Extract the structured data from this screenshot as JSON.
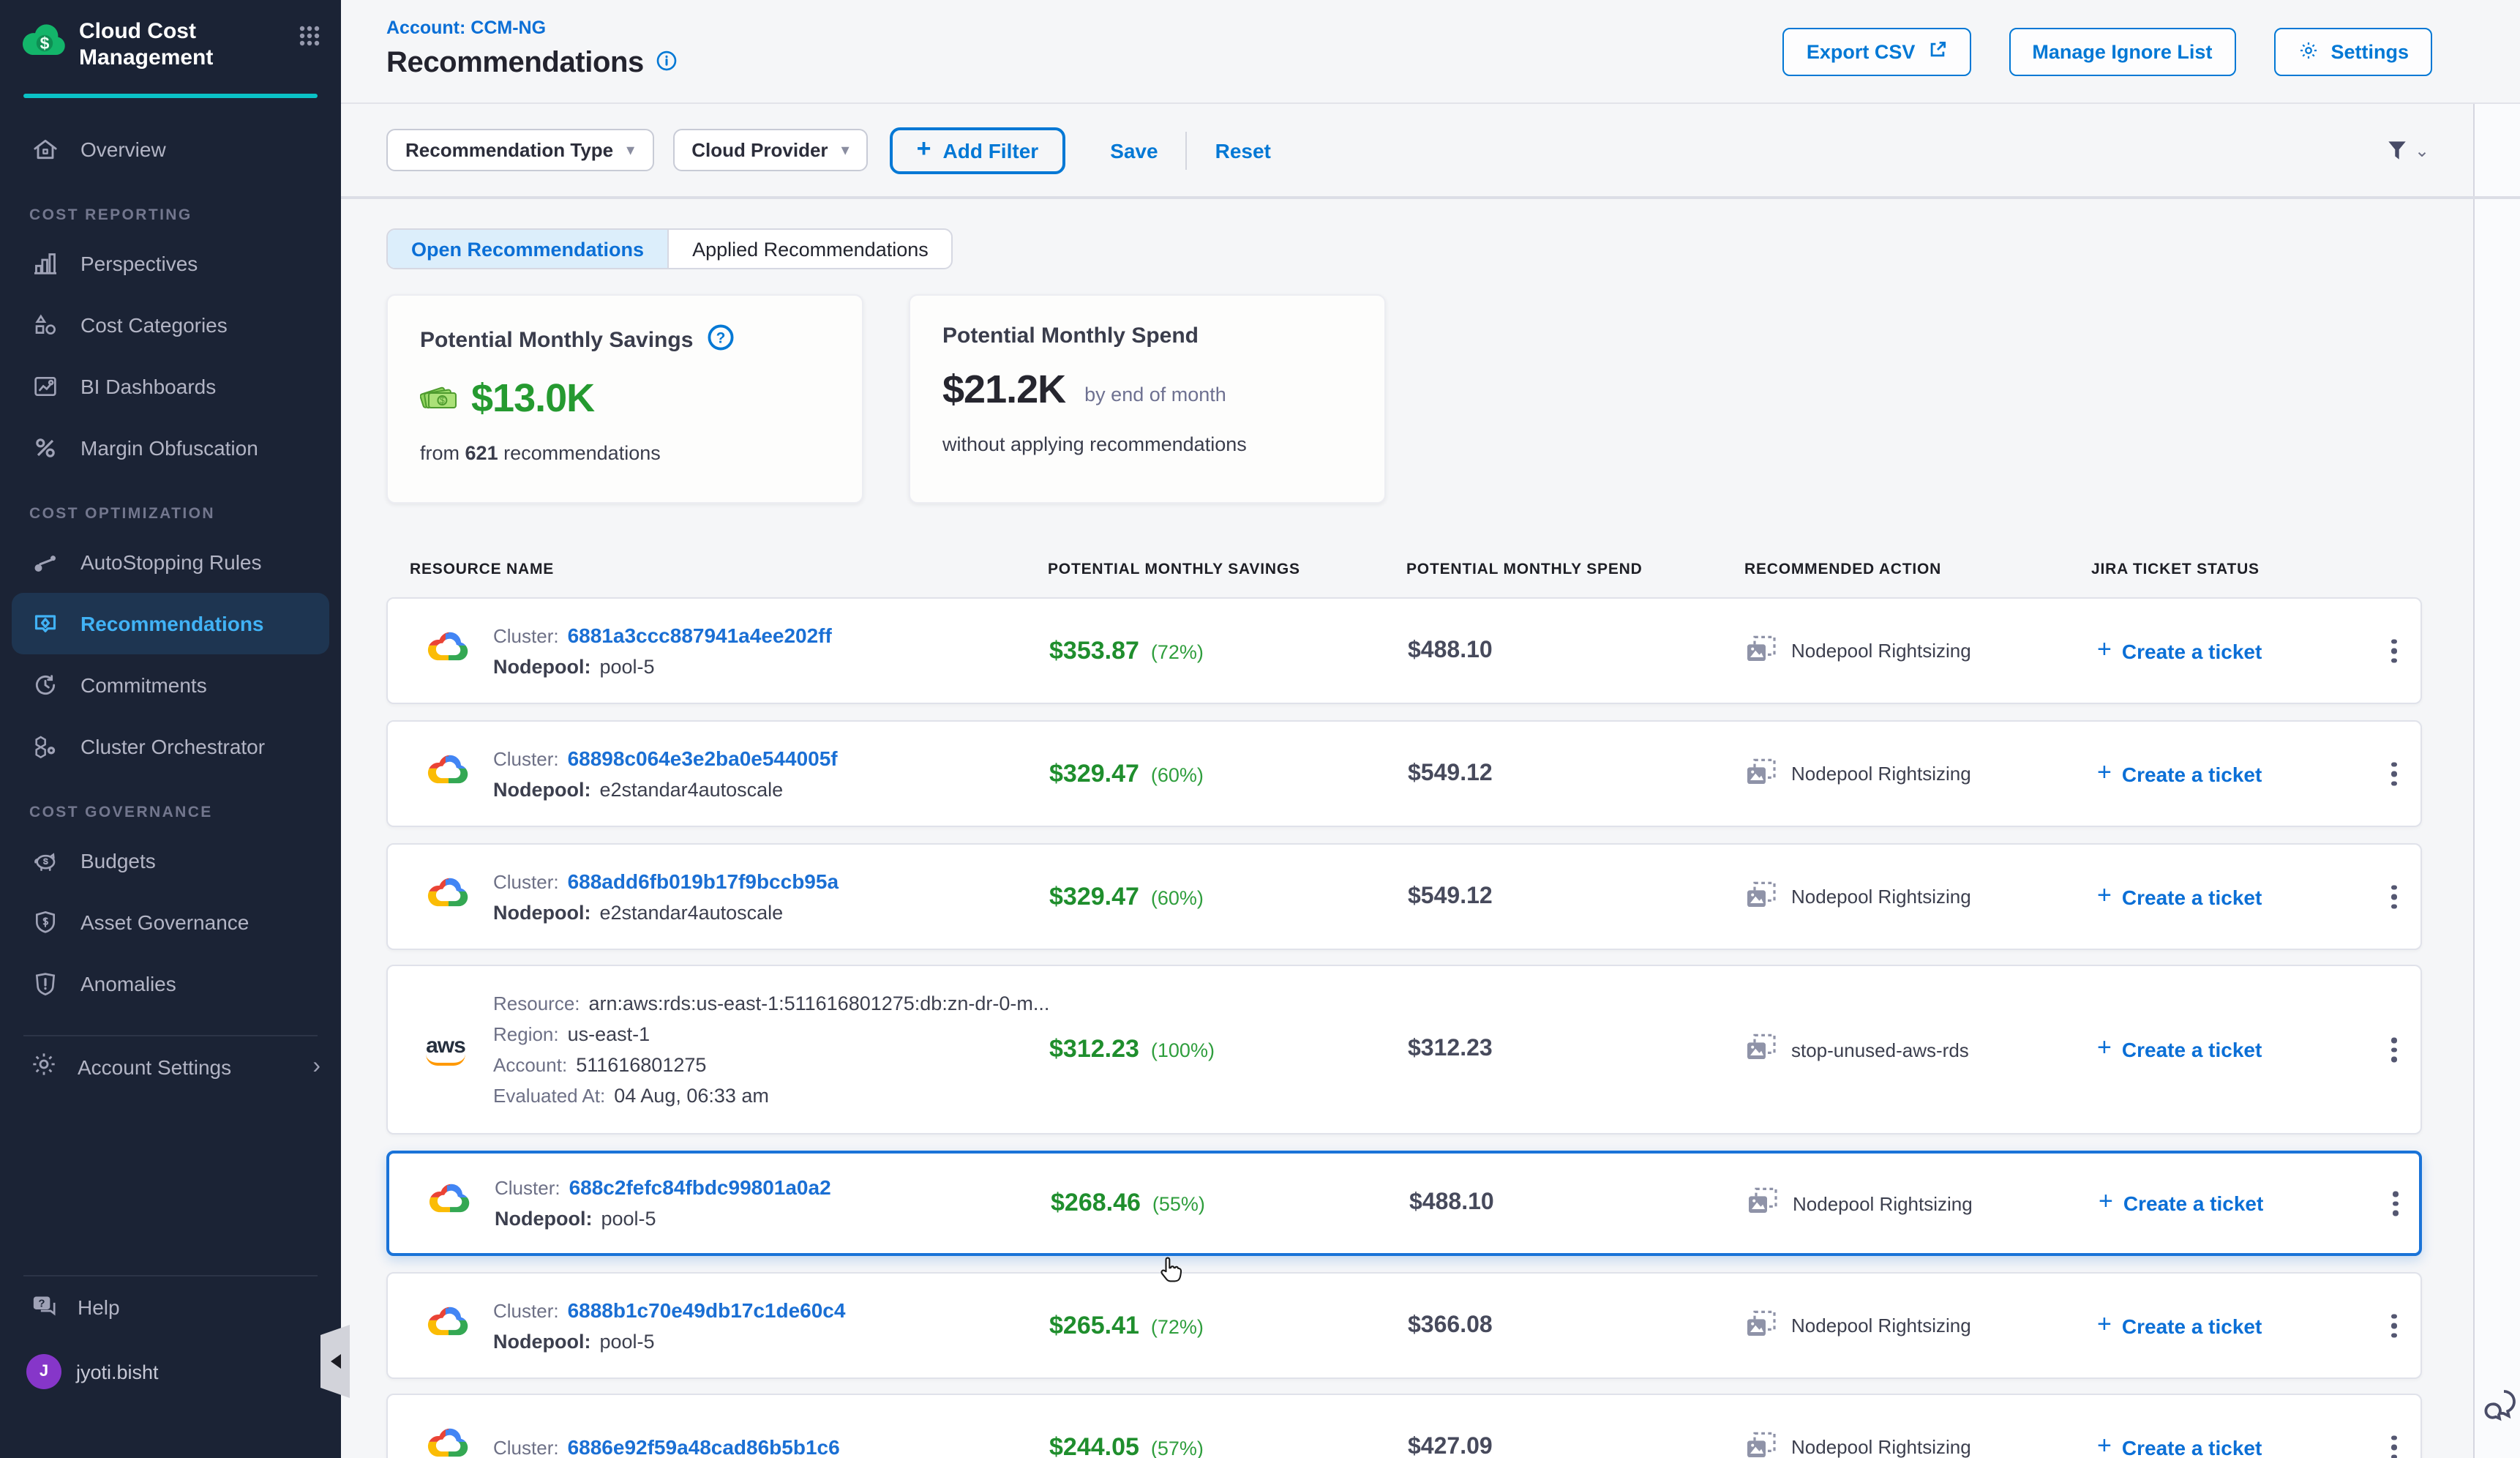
{
  "colors": {
    "accent": "#0278d5",
    "green": "#1f8e2d",
    "sidebar_bg": "#1b2335",
    "teal": "#0ac2c6",
    "active_nav": "#41b2f5"
  },
  "sidebar": {
    "app_title": "Cloud Cost Management",
    "sections": [
      {
        "header": "",
        "items": [
          {
            "label": "Overview",
            "icon": "home-icon"
          }
        ]
      },
      {
        "header": "COST REPORTING",
        "items": [
          {
            "label": "Perspectives",
            "icon": "bar-chart-icon"
          },
          {
            "label": "Cost Categories",
            "icon": "shapes-icon"
          },
          {
            "label": "BI Dashboards",
            "icon": "dashboard-icon"
          },
          {
            "label": "Margin Obfuscation",
            "icon": "percent-icon"
          }
        ]
      },
      {
        "header": "COST OPTIMIZATION",
        "items": [
          {
            "label": "AutoStopping Rules",
            "icon": "autostopping-icon"
          },
          {
            "label": "Recommendations",
            "icon": "recommendations-icon",
            "active": true
          },
          {
            "label": "Commitments",
            "icon": "clock-icon"
          },
          {
            "label": "Cluster Orchestrator",
            "icon": "hexagon-icon"
          }
        ]
      },
      {
        "header": "COST GOVERNANCE",
        "items": [
          {
            "label": "Budgets",
            "icon": "piggy-bank-icon"
          },
          {
            "label": "Asset Governance",
            "icon": "shield-dollar-icon"
          },
          {
            "label": "Anomalies",
            "icon": "shield-alert-icon"
          }
        ]
      }
    ],
    "account_settings": "Account Settings",
    "help": "Help",
    "user": {
      "initial": "J",
      "name": "jyoti.bisht"
    }
  },
  "header": {
    "account": "Account: CCM-NG",
    "title": "Recommendations",
    "buttons": {
      "export": "Export CSV",
      "manage": "Manage Ignore List",
      "settings": "Settings"
    }
  },
  "filters": {
    "type": "Recommendation Type",
    "provider": "Cloud Provider",
    "add": "Add Filter",
    "save": "Save",
    "reset": "Reset"
  },
  "tabs": {
    "open": "Open Recommendations",
    "applied": "Applied Recommendations"
  },
  "cards": {
    "savings": {
      "title": "Potential Monthly Savings",
      "amount": "$13.0K",
      "from": "from",
      "count": "621",
      "suffix": "recommendations"
    },
    "spend": {
      "title": "Potential Monthly Spend",
      "amount": "$21.2K",
      "qualifier": "by end of month",
      "note": "without applying recommendations"
    }
  },
  "table": {
    "columns": [
      "RESOURCE NAME",
      "POTENTIAL MONTHLY SAVINGS",
      "POTENTIAL MONTHLY SPEND",
      "RECOMMENDED ACTION",
      "JIRA TICKET STATUS"
    ],
    "jira_action": "Create a ticket",
    "rows": [
      {
        "provider": "gcp",
        "lines": [
          {
            "label": "Cluster:",
            "value": "6881a3ccc887941a4ee202ff",
            "link": true
          },
          {
            "label": "Nodepool:",
            "value": "pool-5"
          }
        ],
        "savings": "$353.87",
        "pct": "(72%)",
        "spend": "$488.10",
        "action": "Nodepool Rightsizing"
      },
      {
        "provider": "gcp",
        "lines": [
          {
            "label": "Cluster:",
            "value": "68898c064e3e2ba0e544005f",
            "link": true
          },
          {
            "label": "Nodepool:",
            "value": "e2standar4autoscale"
          }
        ],
        "savings": "$329.47",
        "pct": "(60%)",
        "spend": "$549.12",
        "action": "Nodepool Rightsizing"
      },
      {
        "provider": "gcp",
        "lines": [
          {
            "label": "Cluster:",
            "value": "688add6fb019b17f9bccb95a",
            "link": true
          },
          {
            "label": "Nodepool:",
            "value": "e2standar4autoscale"
          }
        ],
        "savings": "$329.47",
        "pct": "(60%)",
        "spend": "$549.12",
        "action": "Nodepool Rightsizing"
      },
      {
        "provider": "aws",
        "lines": [
          {
            "label": "Resource:",
            "value": "arn:aws:rds:us-east-1:511616801275:db:zn-dr-0-m..."
          },
          {
            "label": "Region:",
            "value": "us-east-1"
          },
          {
            "label": "Account:",
            "value": "511616801275"
          },
          {
            "label": "Evaluated At:",
            "value": "04 Aug, 06:33 am"
          }
        ],
        "savings": "$312.23",
        "pct": "(100%)",
        "spend": "$312.23",
        "action": "stop-unused-aws-rds"
      },
      {
        "provider": "gcp",
        "highlighted": true,
        "lines": [
          {
            "label": "Cluster:",
            "value": "688c2fefc84fbdc99801a0a2",
            "link": true
          },
          {
            "label": "Nodepool:",
            "value": "pool-5"
          }
        ],
        "savings": "$268.46",
        "pct": "(55%)",
        "spend": "$488.10",
        "action": "Nodepool Rightsizing"
      },
      {
        "provider": "gcp",
        "lines": [
          {
            "label": "Cluster:",
            "value": "6888b1c70e49db17c1de60c4",
            "link": true
          },
          {
            "label": "Nodepool:",
            "value": "pool-5"
          }
        ],
        "savings": "$265.41",
        "pct": "(72%)",
        "spend": "$366.08",
        "action": "Nodepool Rightsizing"
      },
      {
        "provider": "gcp",
        "lines": [
          {
            "label": "Cluster:",
            "value": "6886e92f59a48cad86b5b1c6",
            "link": true
          }
        ],
        "savings": "$244.05",
        "pct": "(57%)",
        "spend": "$427.09",
        "action": "Nodepool Rightsizing"
      }
    ]
  }
}
